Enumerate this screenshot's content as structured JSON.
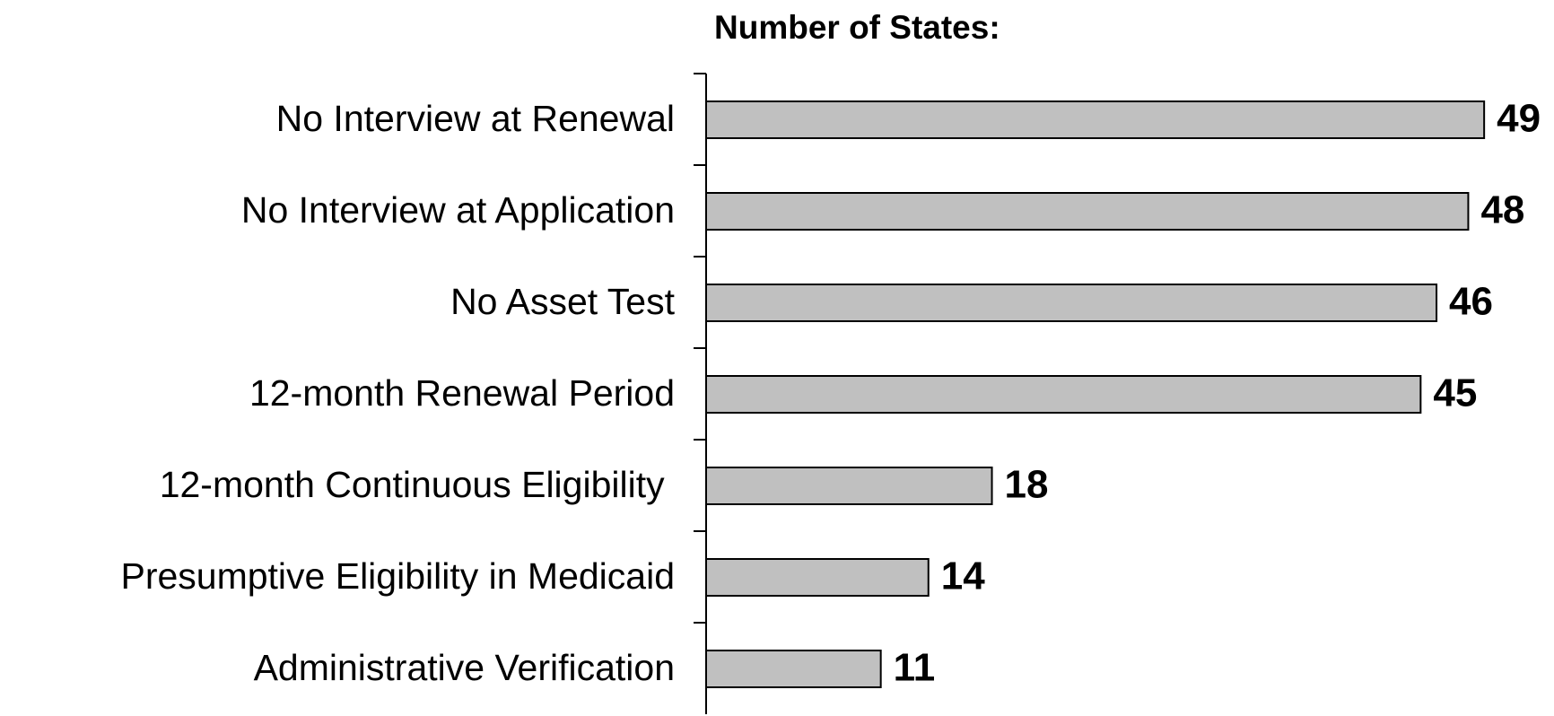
{
  "chart_data": {
    "type": "bar",
    "orientation": "horizontal",
    "title": "Number of States:",
    "categories": [
      "No Interview at Renewal",
      "No Interview at Application",
      "No Asset Test",
      "12-month Renewal Period",
      "12-month Continuous Eligibility ",
      "Presumptive Eligibility in Medicaid",
      "Administrative Verification"
    ],
    "values": [
      49,
      48,
      46,
      45,
      18,
      14,
      11
    ],
    "color": "#c0c0c0",
    "xlim": [
      0,
      53.4
    ]
  }
}
